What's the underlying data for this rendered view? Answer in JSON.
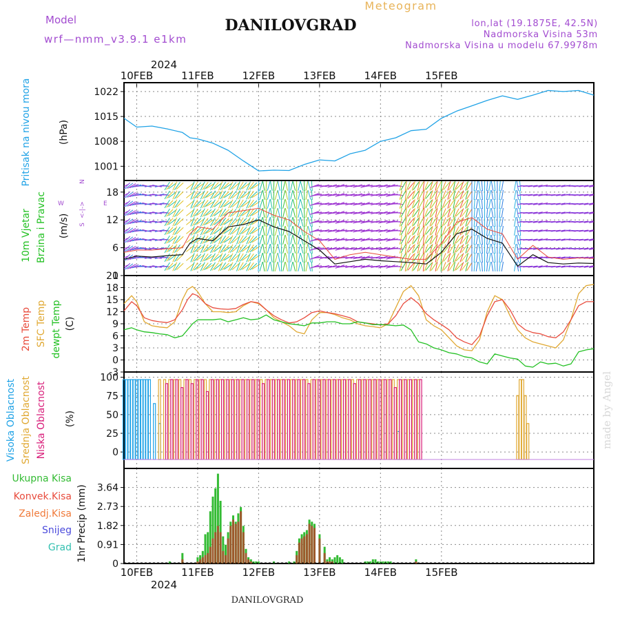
{
  "header": {
    "model_label": "Model",
    "model_name": "wrf—nmm_v3.9.1  e1km",
    "station": "DANILOVGRAD",
    "meteogram": "Meteogram",
    "lonlat": "lon,lat (19.1875E, 42.5N)",
    "elev": "Nadmorska Visina 53m",
    "elev_model": "Nadmorska Visina u modelu 67.9978m",
    "bottom_station": "DANILOVGRAD",
    "made_by": "made by Angel",
    "top_year": "2024",
    "bottom_year": "2024"
  },
  "colors": {
    "pressure": "#1fa2e6",
    "temp2m": "#e84b3c",
    "sfc_temp": "#e0a832",
    "dewpoint": "#22c022",
    "high_cloud": "#1fa2e6",
    "mid_cloud": "#e0a832",
    "low_cloud": "#d81b78",
    "total_precip": "#33bb33",
    "conv_precip": "#9c5a2c",
    "wind_label": "#22c022",
    "panel_label_color": "#a24bd0"
  },
  "chart_data": [
    {
      "type": "line",
      "panel": "pressure",
      "ylabel_left": "Pritisak na nivou mora",
      "unit": "(hPa)",
      "x_dates": [
        "10FEB",
        "11FEB",
        "12FEB",
        "13FEB",
        "14FEB",
        "15FEB"
      ],
      "yticks": [
        1001,
        1008,
        1015,
        1022
      ],
      "ylim": [
        997,
        1024.5
      ],
      "x_hours": [
        -5,
        0,
        6,
        12,
        18,
        21,
        24,
        30,
        36,
        42,
        48,
        54,
        60,
        66,
        72,
        78,
        84,
        90,
        96,
        102,
        108,
        114,
        120,
        126,
        132,
        138,
        144,
        150,
        156,
        162,
        168,
        174,
        180
      ],
      "values": [
        1014.5,
        1012,
        1012.3,
        1011.5,
        1010.5,
        1009,
        1008.7,
        1007.5,
        1005.5,
        1002.5,
        999.7,
        999.9,
        999.8,
        1001.5,
        1002.8,
        1002.5,
        1004.5,
        1005.5,
        1008,
        1009,
        1011,
        1011.4,
        1014.5,
        1016.5,
        1018,
        1019.5,
        1020.8,
        1019.8,
        1021,
        1022.3,
        1022,
        1022.3,
        1021
      ]
    },
    {
      "type": "line",
      "panel": "wind",
      "ylabel_left": "10m Vjetar Brzina i Pravac",
      "unit": "(m/s)",
      "compass": [
        "N",
        "W",
        "E",
        "S"
      ],
      "yticks": [
        0,
        6,
        12,
        18
      ],
      "ylim": [
        0,
        20.5
      ],
      "x_hours": [
        -5,
        0,
        6,
        12,
        18,
        21,
        24,
        30,
        36,
        42,
        48,
        54,
        60,
        66,
        72,
        78,
        84,
        90,
        96,
        102,
        108,
        114,
        120,
        126,
        132,
        138,
        144,
        150,
        156,
        162,
        168,
        174,
        180
      ],
      "series": [
        {
          "name": "wind speed",
          "values": [
            3.5,
            4.2,
            4.0,
            4.3,
            4.5,
            7.0,
            8.0,
            7.5,
            10.5,
            11.0,
            12.0,
            10.5,
            9.5,
            7.5,
            5.5,
            2.5,
            3.0,
            3.5,
            3.2,
            3.0,
            2.8,
            2.5,
            5.0,
            9.0,
            10.0,
            8.0,
            7.0,
            2.0,
            4.5,
            2.8,
            2.5,
            2.7,
            2.6
          ]
        },
        {
          "name": "wind gust",
          "values": [
            5.0,
            5.5,
            5.5,
            5.8,
            6.0,
            9.0,
            10.5,
            10.0,
            13.5,
            14.0,
            14.5,
            13.0,
            12.0,
            9.5,
            7.5,
            3.5,
            4.5,
            5.0,
            4.5,
            4.0,
            3.5,
            3.5,
            7.0,
            11.5,
            12.5,
            10.0,
            9.0,
            3.5,
            6.5,
            4.0,
            3.5,
            3.8,
            3.7
          ]
        }
      ]
    },
    {
      "type": "line",
      "panel": "temperature",
      "ylabel_lines": [
        "2m Temp",
        "SFC Temp",
        "dewpt Temp"
      ],
      "unit": "(C)",
      "yticks": [
        -3,
        0,
        3,
        6,
        9,
        12,
        15,
        18,
        21
      ],
      "ylim": [
        -3,
        21
      ],
      "x_hours": [
        -5,
        -2,
        0,
        3,
        6,
        9,
        12,
        15,
        18,
        20,
        22,
        24,
        27,
        30,
        33,
        36,
        39,
        42,
        45,
        48,
        51,
        54,
        57,
        60,
        63,
        66,
        69,
        72,
        75,
        78,
        81,
        84,
        87,
        90,
        93,
        96,
        99,
        102,
        105,
        108,
        111,
        114,
        117,
        120,
        123,
        126,
        129,
        132,
        135,
        138,
        141,
        144,
        147,
        150,
        153,
        156,
        159,
        162,
        165,
        168,
        171,
        174,
        177,
        180
      ],
      "series": [
        {
          "name": "2m Temp",
          "values": [
            12.2,
            14.5,
            13.5,
            10.5,
            9.8,
            9.5,
            9.3,
            10.0,
            12.5,
            15.0,
            16.5,
            16.0,
            14.0,
            13.0,
            12.7,
            12.6,
            12.8,
            13.8,
            14.5,
            14.2,
            12.5,
            11.0,
            10.0,
            9.2,
            9.5,
            10.5,
            11.8,
            12.2,
            11.8,
            11.5,
            11.0,
            10.5,
            9.5,
            9.2,
            9.0,
            8.7,
            9.0,
            11.0,
            14.0,
            15.5,
            14.0,
            11.5,
            10.0,
            8.8,
            7.5,
            5.5,
            4.5,
            3.8,
            6.0,
            11.0,
            14.5,
            15.0,
            12.5,
            9.0,
            7.5,
            6.8,
            6.5,
            5.8,
            5.5,
            7.0,
            10.0,
            13.5,
            14.5,
            14.5
          ]
        },
        {
          "name": "SFC Temp",
          "values": [
            14.0,
            16.0,
            14.5,
            9.5,
            8.5,
            8.2,
            8.0,
            9.5,
            15.0,
            17.5,
            18.3,
            17.0,
            14.0,
            12.0,
            12.0,
            11.8,
            12.0,
            13.5,
            14.5,
            14.0,
            12.5,
            10.5,
            9.5,
            8.5,
            7.0,
            6.5,
            10.0,
            11.8,
            11.8,
            11.3,
            10.5,
            10.0,
            9.0,
            8.5,
            8.3,
            8.0,
            9.0,
            13.0,
            17.0,
            18.5,
            16.0,
            10.0,
            8.5,
            7.5,
            5.5,
            3.5,
            2.5,
            2.3,
            5.0,
            12.0,
            16.0,
            15.0,
            11.0,
            7.5,
            5.5,
            4.5,
            4.0,
            3.5,
            3.0,
            5.0,
            10.0,
            16.5,
            18.5,
            18.8
          ]
        },
        {
          "name": "dewpt Temp",
          "values": [
            7.5,
            8.0,
            7.5,
            7.0,
            6.8,
            6.5,
            6.3,
            5.5,
            6.0,
            7.5,
            9.0,
            10.0,
            10.0,
            10.0,
            10.2,
            9.5,
            10.0,
            10.5,
            10.0,
            10.2,
            11.2,
            10.0,
            9.5,
            9.0,
            8.8,
            8.5,
            9.2,
            9.2,
            9.5,
            9.5,
            9.0,
            9.0,
            9.5,
            9.2,
            8.8,
            8.8,
            8.7,
            8.5,
            8.7,
            7.5,
            4.5,
            4.0,
            3.0,
            2.5,
            1.8,
            1.5,
            0.8,
            0.5,
            -0.5,
            -1.0,
            1.5,
            1.0,
            0.5,
            0.2,
            -1.5,
            -1.8,
            -0.5,
            -1.0,
            -0.8,
            -1.5,
            -1.0,
            2.0,
            2.5,
            2.8
          ]
        }
      ]
    },
    {
      "type": "bar",
      "panel": "cloud",
      "ylabel_lines": [
        "Visoka Oblacnost",
        "Srednja Oblacnost",
        "Niska Oblacnost"
      ],
      "unit": "(%)",
      "yticks": [
        0,
        25,
        50,
        75,
        100
      ],
      "ylim": [
        0,
        100
      ],
      "x_hours": [
        -5,
        -4,
        -3,
        -2,
        -1,
        0,
        1,
        2,
        3,
        4,
        5,
        7,
        9,
        11,
        13,
        15,
        17,
        19,
        21,
        23,
        25,
        27,
        29,
        31,
        33,
        35,
        37,
        39,
        41,
        43,
        45,
        47,
        49,
        51,
        53,
        55,
        57,
        59,
        61,
        63,
        65,
        67,
        69,
        71,
        73,
        75,
        77,
        79,
        81,
        83,
        85,
        87,
        89,
        91,
        93,
        95,
        97,
        99,
        101,
        103,
        105,
        107,
        109,
        111,
        150,
        151,
        152,
        153,
        154
      ],
      "series": [
        {
          "name": "Visoka Oblacnost",
          "values": [
            100,
            100,
            100,
            100,
            100,
            100,
            100,
            100,
            100,
            100,
            100,
            70,
            45,
            0,
            0,
            0,
            0,
            0,
            0,
            0,
            0,
            0,
            0,
            0,
            0,
            0,
            0,
            0,
            0,
            0,
            0,
            0,
            0,
            0,
            0,
            0,
            0,
            0,
            0,
            0,
            0,
            0,
            0,
            0,
            0,
            0,
            0,
            0,
            0,
            0,
            0,
            0,
            0,
            0,
            0,
            0,
            0,
            0,
            0,
            35,
            0,
            0,
            0,
            0,
            0,
            0,
            0,
            0,
            0
          ]
        },
        {
          "name": "Srednja Oblacnost",
          "values": [
            0,
            0,
            0,
            0,
            0,
            0,
            0,
            0,
            0,
            0,
            0,
            0,
            100,
            100,
            100,
            100,
            100,
            100,
            100,
            100,
            100,
            100,
            100,
            100,
            100,
            100,
            100,
            100,
            100,
            100,
            100,
            100,
            100,
            100,
            100,
            100,
            100,
            100,
            100,
            100,
            100,
            100,
            100,
            100,
            100,
            100,
            100,
            100,
            100,
            100,
            100,
            100,
            100,
            100,
            100,
            100,
            100,
            100,
            100,
            100,
            100,
            100,
            100,
            100,
            80,
            100,
            100,
            80,
            45
          ]
        },
        {
          "name": "Niska Oblacnost",
          "values": [
            0,
            0,
            0,
            0,
            0,
            0,
            0,
            0,
            0,
            0,
            0,
            0,
            0,
            95,
            100,
            100,
            90,
            100,
            95,
            100,
            100,
            85,
            100,
            100,
            100,
            100,
            100,
            100,
            100,
            100,
            100,
            100,
            95,
            100,
            100,
            100,
            100,
            100,
            100,
            100,
            100,
            95,
            100,
            100,
            100,
            100,
            100,
            100,
            100,
            100,
            95,
            100,
            100,
            100,
            100,
            100,
            100,
            100,
            90,
            100,
            100,
            100,
            100,
            100,
            0,
            0,
            0,
            0,
            0
          ]
        }
      ]
    },
    {
      "type": "bar",
      "panel": "precip",
      "legend_lines": [
        "Ukupna  Kisa",
        "Konvek.Kisa",
        "Zaledj.Kisa",
        "Snijeg",
        "Grad"
      ],
      "ylabel": "1hr Precip (mm)",
      "yticks": [
        0,
        0.91,
        1.82,
        2.73,
        3.64
      ],
      "ylim": [
        0,
        4.55
      ],
      "x_hours": [
        13,
        18,
        24,
        25,
        26,
        27,
        28,
        29,
        30,
        31,
        32,
        33,
        34,
        35,
        36,
        37,
        38,
        39,
        40,
        41,
        42,
        43,
        44,
        45,
        46,
        47,
        48,
        54,
        60,
        62,
        63,
        64,
        65,
        66,
        67,
        68,
        69,
        70,
        72,
        74,
        75,
        76,
        77,
        78,
        79,
        80,
        81,
        90,
        91,
        92,
        93,
        94,
        95,
        96,
        97,
        98,
        99,
        100,
        110
      ],
      "series": [
        {
          "name": "Ukupna  Kisa",
          "values": [
            0.1,
            0.5,
            0.3,
            0.4,
            0.6,
            1.4,
            1.5,
            2.5,
            3.2,
            3.6,
            4.3,
            3.0,
            1.3,
            0.9,
            1.5,
            2.0,
            2.3,
            2.0,
            2.4,
            2.7,
            1.8,
            0.7,
            0.3,
            0.2,
            0.1,
            0.1,
            0.1,
            0.1,
            0.1,
            0.1,
            0.6,
            1.2,
            1.4,
            1.5,
            1.6,
            2.1,
            2.0,
            1.9,
            1.4,
            0.8,
            0.2,
            0.3,
            0.2,
            0.3,
            0.4,
            0.3,
            0.2,
            0.1,
            0.1,
            0.1,
            0.2,
            0.2,
            0.1,
            0.1,
            0.1,
            0.1,
            0.1,
            0.1,
            0.2
          ]
        },
        {
          "name": "Konvek.Kisa",
          "values": [
            0,
            0.2,
            0.1,
            0.2,
            0.3,
            0.4,
            0.5,
            0.8,
            1.2,
            1.5,
            1.8,
            1.5,
            0.6,
            0.4,
            1.2,
            1.8,
            2.1,
            1.9,
            2.0,
            2.5,
            1.5,
            0.5,
            0.2,
            0.1,
            0,
            0,
            0,
            0,
            0,
            0,
            0.4,
            1.0,
            1.2,
            1.3,
            1.4,
            1.9,
            1.8,
            1.7,
            1.2,
            0.5,
            0.1,
            0.1,
            0.1,
            0,
            0,
            0,
            0,
            0,
            0,
            0,
            0,
            0,
            0,
            0,
            0,
            0,
            0,
            0,
            0.1
          ]
        }
      ]
    }
  ]
}
